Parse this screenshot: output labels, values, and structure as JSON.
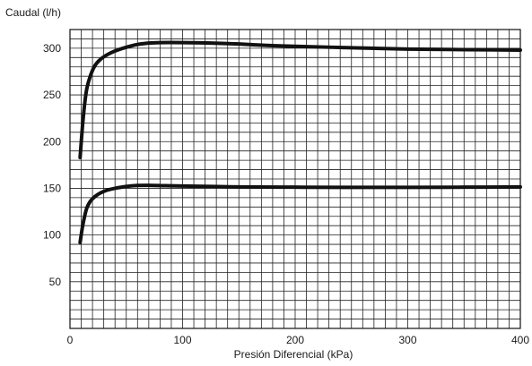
{
  "chart_data": {
    "type": "line",
    "title": "",
    "ylabel": "Caudal (l/h)",
    "xlabel": "Presión Diferencial (kPa)",
    "xlim": [
      0,
      400
    ],
    "ylim": [
      0,
      320
    ],
    "x_ticks": [
      0,
      100,
      200,
      300,
      400
    ],
    "y_ticks": [
      50,
      100,
      150,
      200,
      250,
      300
    ],
    "grid": true,
    "grid_minor_x_step": 10,
    "grid_minor_y_step": 10,
    "line_color": "#111111",
    "series": [
      {
        "points": [
          [
            9,
            183
          ],
          [
            11,
            215
          ],
          [
            13,
            240
          ],
          [
            15,
            257
          ],
          [
            18,
            270
          ],
          [
            22,
            281
          ],
          [
            27,
            288
          ],
          [
            33,
            293
          ],
          [
            40,
            297
          ],
          [
            50,
            301
          ],
          [
            60,
            304
          ],
          [
            70,
            305.5
          ],
          [
            80,
            306
          ],
          [
            100,
            306
          ],
          [
            125,
            305.5
          ],
          [
            150,
            304.5
          ],
          [
            175,
            303
          ],
          [
            200,
            302
          ],
          [
            250,
            300.5
          ],
          [
            300,
            299
          ],
          [
            350,
            298.5
          ],
          [
            400,
            298
          ]
        ]
      },
      {
        "points": [
          [
            9,
            92
          ],
          [
            11,
            108
          ],
          [
            13,
            120
          ],
          [
            15,
            129
          ],
          [
            18,
            136
          ],
          [
            22,
            141
          ],
          [
            27,
            145
          ],
          [
            33,
            148
          ],
          [
            40,
            150
          ],
          [
            50,
            152
          ],
          [
            60,
            153
          ],
          [
            70,
            153.2
          ],
          [
            85,
            152.8
          ],
          [
            100,
            152.5
          ],
          [
            150,
            151.5
          ],
          [
            200,
            151.2
          ],
          [
            250,
            151
          ],
          [
            300,
            151
          ],
          [
            350,
            151.2
          ],
          [
            400,
            151.5
          ]
        ]
      }
    ]
  }
}
